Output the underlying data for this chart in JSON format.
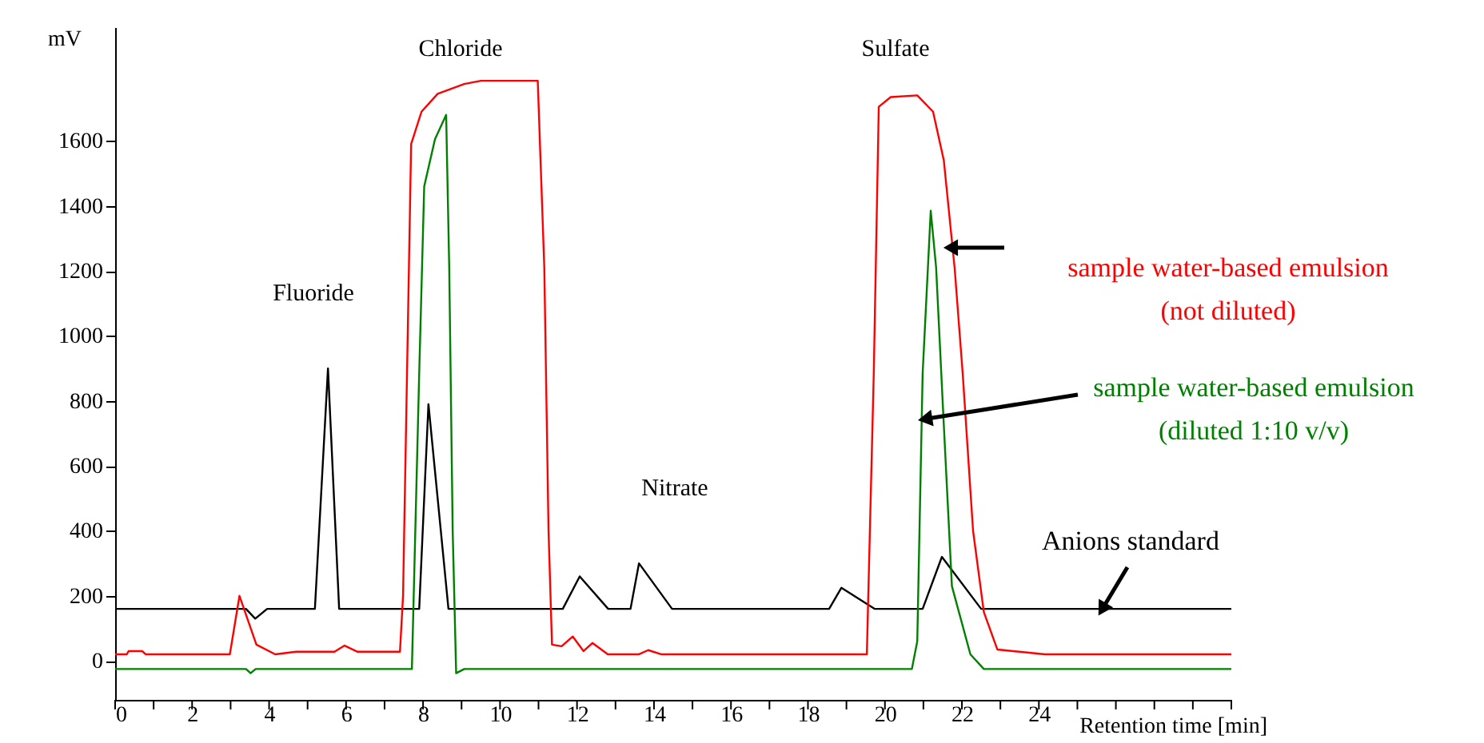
{
  "chart_data": {
    "type": "line",
    "xlabel": "Retention time [min]",
    "ylabel": "mV",
    "xlim": [
      0,
      29
    ],
    "ylim": [
      -120,
      1950
    ],
    "xticks": [
      0,
      {
        "value": 1,
        "label": null
      },
      2,
      {
        "value": 3,
        "label": null
      },
      4,
      {
        "value": 5,
        "label": null
      },
      6,
      {
        "value": 7,
        "label": null
      },
      8,
      {
        "value": 9,
        "label": null
      },
      10,
      {
        "value": 11,
        "label": null
      },
      12,
      {
        "value": 13,
        "label": null
      },
      14,
      {
        "value": 15,
        "label": null
      },
      16,
      {
        "value": 17,
        "label": null
      },
      18,
      {
        "value": 19,
        "label": null
      },
      20,
      {
        "value": 21,
        "label": null
      },
      22,
      {
        "value": 23,
        "label": null
      },
      24,
      {
        "value": 25,
        "label": null
      },
      {
        "value": 26,
        "label": null
      },
      {
        "value": 27,
        "label": null
      },
      {
        "value": 28,
        "label": null
      },
      {
        "value": 29,
        "label": null
      }
    ],
    "yticks": [
      0,
      200,
      400,
      600,
      800,
      1000,
      1200,
      1400,
      1600
    ],
    "grid": false,
    "marker": "none",
    "line_style": "solid",
    "annotations": [
      "Fluoride",
      "Chloride",
      "Nitrate",
      "Sulfate"
    ],
    "series": [
      {
        "name": "Anions standard",
        "color": "#000000",
        "x": [
          0,
          3.4,
          3.64,
          3.95,
          5.19,
          5.53,
          5.82,
          7.9,
          8.14,
          8.66,
          11.63,
          12.07,
          12.81,
          13.39,
          13.61,
          14.47,
          18.55,
          18.87,
          19.73,
          20.98,
          21.48,
          22.5,
          29
        ],
        "values": [
          160,
          160,
          130,
          160,
          160,
          900,
          160,
          160,
          790,
          160,
          160,
          260,
          160,
          160,
          300,
          160,
          160,
          225,
          160,
          160,
          320,
          160,
          160
        ]
      },
      {
        "name": "sample water-based emulsion\n(not diluted)",
        "color": "#ff0000",
        "x": [
          0,
          0.3,
          0.35,
          0.7,
          0.8,
          2.98,
          3.23,
          3.67,
          4.16,
          4.7,
          5.7,
          5.96,
          6.3,
          7.4,
          7.48,
          7.69,
          7.96,
          8.38,
          9.07,
          9.5,
          10.98,
          11.15,
          11.26,
          11.35,
          11.6,
          11.89,
          12.17,
          12.4,
          12.8,
          13.6,
          13.85,
          14.2,
          19.53,
          19.71,
          19.84,
          20.15,
          20.84,
          21.25,
          21.53,
          21.81,
          22.02,
          22.29,
          22.57,
          22.92,
          24.16,
          29
        ],
        "values": [
          20,
          20,
          30,
          30,
          20,
          20,
          200,
          50,
          20,
          28,
          28,
          47,
          28,
          28,
          200,
          1590,
          1690,
          1745,
          1775,
          1785,
          1785,
          1210,
          400,
          50,
          45,
          75,
          30,
          55,
          20,
          20,
          33,
          20,
          20,
          885,
          1705,
          1735,
          1740,
          1690,
          1540,
          1210,
          885,
          400,
          150,
          35,
          20,
          20
        ]
      },
      {
        "name": "sample water-based emulsion\n(diluted 1:10 v/v)",
        "color": "#008000",
        "x": [
          0,
          3.4,
          3.52,
          3.65,
          7.71,
          7.9,
          8.03,
          8.31,
          8.6,
          8.68,
          8.77,
          8.86,
          9.07,
          20.7,
          20.84,
          20.98,
          21.19,
          21.33,
          21.53,
          21.74,
          22.22,
          22.57,
          29
        ],
        "values": [
          -25,
          -25,
          -38,
          -25,
          -25,
          885,
          1460,
          1605,
          1680,
          1210,
          400,
          -38,
          -25,
          -25,
          60,
          885,
          1385,
          1210,
          725,
          230,
          20,
          -25,
          -25
        ]
      }
    ]
  }
}
